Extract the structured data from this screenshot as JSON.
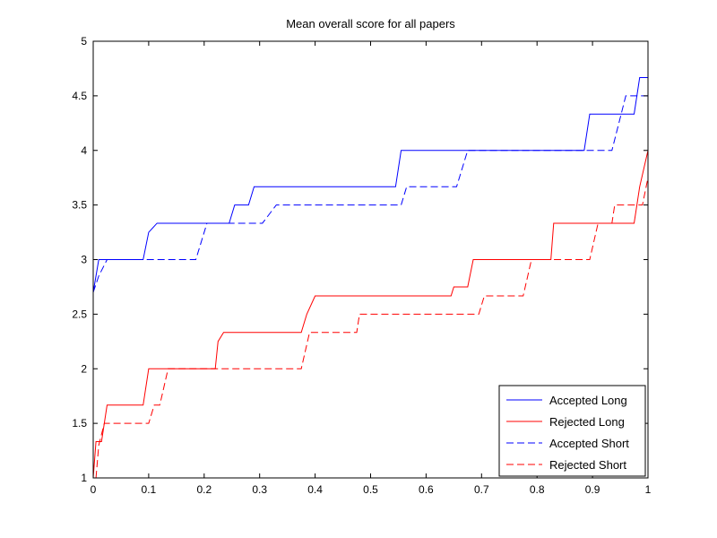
{
  "chart_data": {
    "type": "line",
    "title": "Mean overall score for all papers",
    "xlabel": "",
    "ylabel": "",
    "xlim": [
      0,
      1
    ],
    "ylim": [
      1,
      5
    ],
    "xticks": [
      0,
      0.1,
      0.2,
      0.3,
      0.4,
      0.5,
      0.6,
      0.7,
      0.8,
      0.9,
      1
    ],
    "xtick_labels": [
      "0",
      "0.1",
      "0.2",
      "0.3",
      "0.4",
      "0.5",
      "0.6",
      "0.7",
      "0.8",
      "0.9",
      "1"
    ],
    "yticks": [
      1,
      1.5,
      2,
      2.5,
      3,
      3.5,
      4,
      4.5,
      5
    ],
    "ytick_labels": [
      "1",
      "1.5",
      "2",
      "2.5",
      "3",
      "3.5",
      "4",
      "4.5",
      "5"
    ],
    "grid": false,
    "legend_position": "bottom-right",
    "series": [
      {
        "name": "Accepted Long",
        "color": "#0000ff",
        "style": "solid",
        "x": [
          0,
          0.01,
          0.02,
          0.09,
          0.1,
          0.115,
          0.245,
          0.255,
          0.28,
          0.29,
          0.545,
          0.555,
          0.885,
          0.895,
          0.975,
          0.985,
          1.0
        ],
        "y": [
          2.7,
          3.0,
          3.0,
          3.0,
          3.25,
          3.333,
          3.333,
          3.5,
          3.5,
          3.667,
          3.667,
          4.0,
          4.0,
          4.333,
          4.333,
          4.667,
          4.667
        ]
      },
      {
        "name": "Rejected Long",
        "color": "#ff0000",
        "style": "solid",
        "x": [
          0,
          0.005,
          0.015,
          0.025,
          0.09,
          0.1,
          0.22,
          0.225,
          0.235,
          0.375,
          0.385,
          0.4,
          0.645,
          0.65,
          0.675,
          0.685,
          0.825,
          0.83,
          0.975,
          0.985,
          1.0
        ],
        "y": [
          1.0,
          1.333,
          1.333,
          1.667,
          1.667,
          2.0,
          2.0,
          2.25,
          2.333,
          2.333,
          2.5,
          2.667,
          2.667,
          2.75,
          2.75,
          3.0,
          3.0,
          3.333,
          3.333,
          3.667,
          4.0
        ]
      },
      {
        "name": "Accepted Short",
        "color": "#0000ff",
        "style": "dashed",
        "x": [
          0,
          0.01,
          0.025,
          0.185,
          0.205,
          0.305,
          0.33,
          0.555,
          0.565,
          0.655,
          0.675,
          0.935,
          0.96,
          1.0
        ],
        "y": [
          2.7,
          2.85,
          3.0,
          3.0,
          3.333,
          3.333,
          3.5,
          3.5,
          3.667,
          3.667,
          4.0,
          4.0,
          4.5,
          4.5
        ]
      },
      {
        "name": "Rejected Short",
        "color": "#ff0000",
        "style": "dashed",
        "x": [
          0.005,
          0.01,
          0.02,
          0.1,
          0.11,
          0.12,
          0.135,
          0.375,
          0.39,
          0.475,
          0.48,
          0.695,
          0.705,
          0.775,
          0.79,
          0.895,
          0.91,
          0.935,
          0.94,
          0.99,
          1.0
        ],
        "y": [
          1.0,
          1.3,
          1.5,
          1.5,
          1.667,
          1.667,
          2.0,
          2.0,
          2.333,
          2.333,
          2.5,
          2.5,
          2.667,
          2.667,
          3.0,
          3.0,
          3.333,
          3.333,
          3.5,
          3.5,
          3.75
        ]
      }
    ]
  }
}
